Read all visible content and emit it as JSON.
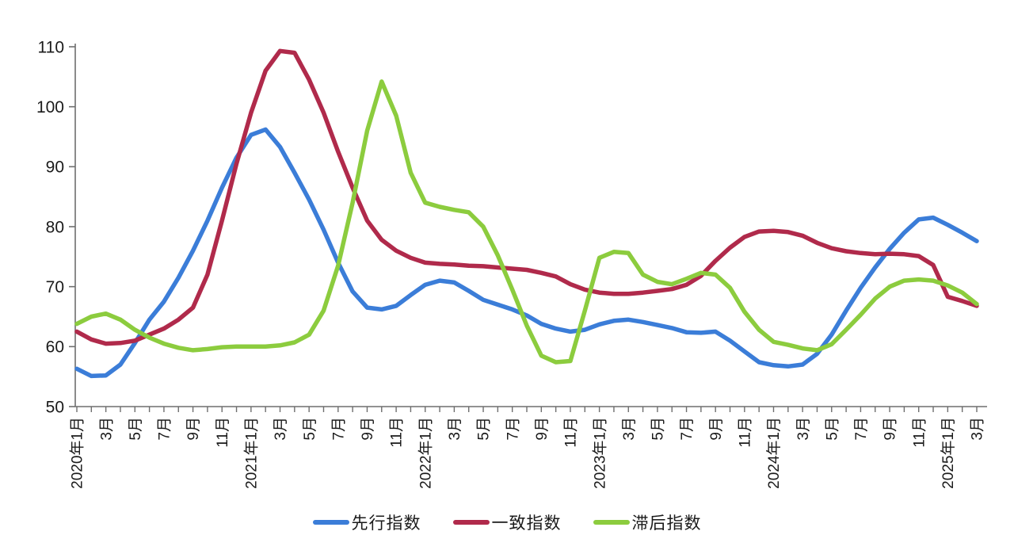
{
  "chart_data": {
    "type": "line",
    "title": "",
    "xlabel": "",
    "ylabel": "",
    "ylim": [
      50,
      110
    ],
    "yticks": [
      50,
      60,
      70,
      80,
      90,
      100,
      110
    ],
    "grid": false,
    "legend_position": "bottom",
    "n_points": 63,
    "x_tick_step": 2,
    "x_tick_labels": [
      "2020年1月",
      "3月",
      "5月",
      "7月",
      "9月",
      "11月",
      "2021年1月",
      "3月",
      "5月",
      "7月",
      "9月",
      "11月",
      "2022年1月",
      "3月",
      "5月",
      "7月",
      "9月",
      "11月",
      "2023年1月",
      "3月",
      "5月",
      "7月",
      "9月",
      "11月",
      "2024年1月",
      "3月",
      "5月",
      "7月",
      "9月",
      "11月",
      "2025年1月",
      "3月"
    ],
    "series": [
      {
        "key": "leading-index",
        "name": "先行指数",
        "color": "#3b7dd8",
        "values": [
          56.3,
          55.1,
          55.2,
          57.0,
          60.6,
          64.5,
          67.5,
          71.5,
          76.0,
          81.0,
          86.5,
          91.5,
          95.3,
          96.2,
          93.3,
          89.0,
          84.5,
          79.5,
          74.0,
          69.2,
          66.5,
          66.2,
          66.8,
          68.6,
          70.3,
          71.0,
          70.7,
          69.3,
          67.8,
          67.0,
          66.2,
          65.2,
          63.8,
          63.0,
          62.5,
          62.8,
          63.7,
          64.3,
          64.5,
          64.1,
          63.6,
          63.1,
          62.4,
          62.3,
          62.5,
          61.0,
          59.2,
          57.4,
          56.9,
          56.7,
          57.0,
          58.8,
          62.0,
          66.0,
          69.8,
          73.2,
          76.3,
          79.0,
          81.2,
          81.5,
          80.3,
          79.0,
          77.6
        ]
      },
      {
        "key": "coincident-index",
        "name": "一致指数",
        "color": "#b02a4b",
        "values": [
          62.5,
          61.2,
          60.5,
          60.6,
          61.0,
          62.0,
          63.0,
          64.5,
          66.5,
          72.0,
          81.0,
          90.5,
          99.0,
          106.0,
          109.3,
          109.0,
          104.5,
          99.0,
          92.5,
          86.5,
          81.0,
          77.8,
          76.0,
          74.8,
          74.0,
          73.8,
          73.7,
          73.5,
          73.4,
          73.2,
          73.0,
          72.8,
          72.3,
          71.7,
          70.4,
          69.5,
          69.0,
          68.8,
          68.8,
          69.0,
          69.3,
          69.6,
          70.3,
          71.8,
          74.3,
          76.5,
          78.3,
          79.2,
          79.3,
          79.1,
          78.5,
          77.3,
          76.4,
          75.9,
          75.6,
          75.4,
          75.5,
          75.4,
          75.1,
          73.6,
          68.3,
          67.6,
          66.8
        ]
      },
      {
        "key": "lagging-index",
        "name": "滞后指数",
        "color": "#8ccc3e",
        "values": [
          63.8,
          65.0,
          65.5,
          64.5,
          62.8,
          61.5,
          60.5,
          59.8,
          59.4,
          59.6,
          59.9,
          60.0,
          60.0,
          60.0,
          60.2,
          60.7,
          62.0,
          66.0,
          73.5,
          84.0,
          96.0,
          104.2,
          98.5,
          89.0,
          84.0,
          83.3,
          82.8,
          82.4,
          80.0,
          75.2,
          69.5,
          63.5,
          58.5,
          57.4,
          57.6,
          66.0,
          74.8,
          75.8,
          75.6,
          72.0,
          70.8,
          70.4,
          71.3,
          72.3,
          72.0,
          69.8,
          65.8,
          62.8,
          60.8,
          60.3,
          59.7,
          59.4,
          60.4,
          62.8,
          65.3,
          68.0,
          70.0,
          71.0,
          71.2,
          71.0,
          70.2,
          69.0,
          67.1
        ]
      }
    ]
  },
  "axis": {
    "color": "#6e6e6e",
    "label_color": "#1a1a1a"
  }
}
